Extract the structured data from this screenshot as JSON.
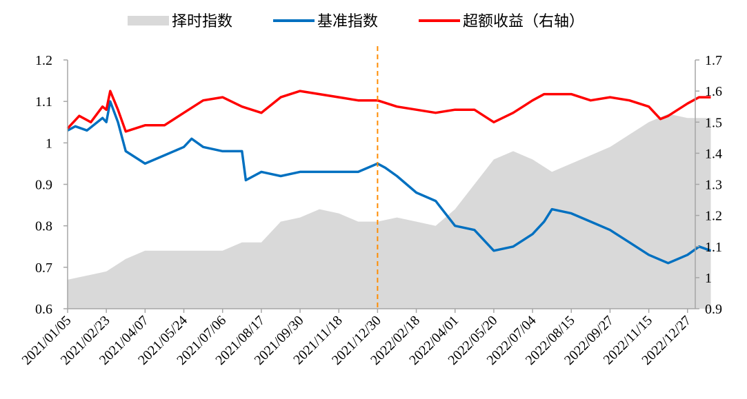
{
  "chart_data": {
    "type": "line",
    "legend": [
      {
        "label": "择时指数",
        "color": "#d9d9d9",
        "kind": "area"
      },
      {
        "label": "基准指数",
        "color": "#0070c0",
        "kind": "line"
      },
      {
        "label": "超额收益（右轴）",
        "color": "#ff0000",
        "kind": "line"
      }
    ],
    "legend_position": "top",
    "x_ticks": [
      "2021/01/05",
      "2021/02/23",
      "2021/04/07",
      "2021/05/24",
      "2021/07/06",
      "2021/08/17",
      "2021/09/30",
      "2021/11/18",
      "2021/12/30",
      "2022/02/18",
      "2022/04/01",
      "2022/05/20",
      "2022/07/04",
      "2022/08/15",
      "2022/09/27",
      "2022/11/15",
      "2022/12/27"
    ],
    "left_axis": {
      "range": [
        0.6,
        1.2
      ],
      "ticks": [
        "0.6",
        "0.7",
        "0.8",
        "0.9",
        "1",
        "1.1",
        "1.2"
      ]
    },
    "right_axis": {
      "range": [
        0.9,
        1.7
      ],
      "ticks": [
        "0.9",
        "1",
        "1.1",
        "1.2",
        "1.3",
        "1.4",
        "1.5",
        "1.6",
        "1.7"
      ]
    },
    "divider": {
      "at": "2021/12/30",
      "color": "#ff8c00",
      "style": "dashed"
    },
    "grid": false,
    "series": [
      {
        "name": "择时指数",
        "axis": "left",
        "color": "#d9d9d9",
        "x": [
          0,
          0.5,
          1,
          1.5,
          2,
          2.5,
          3,
          3.5,
          4,
          4.5,
          5,
          5.5,
          6,
          6.5,
          7,
          7.5,
          8,
          8.5,
          9,
          9.5,
          10,
          10.5,
          11,
          11.5,
          12,
          12.5,
          13,
          13.5,
          14,
          14.5,
          15,
          15.5,
          16,
          16.6
        ],
        "y": [
          0.67,
          0.68,
          0.69,
          0.72,
          0.74,
          0.74,
          0.74,
          0.74,
          0.74,
          0.76,
          0.76,
          0.81,
          0.82,
          0.84,
          0.83,
          0.81,
          0.81,
          0.82,
          0.81,
          0.8,
          0.84,
          0.9,
          0.96,
          0.98,
          0.96,
          0.93,
          0.95,
          0.97,
          0.99,
          1.02,
          1.05,
          1.07,
          1.06,
          1.06
        ]
      },
      {
        "name": "基准指数",
        "axis": "left",
        "color": "#0070c0",
        "x": [
          0,
          0.2,
          0.5,
          0.9,
          1.0,
          1.1,
          1.3,
          1.5,
          2,
          2.5,
          3,
          3.2,
          3.5,
          4,
          4.5,
          4.6,
          5,
          5.5,
          6,
          6.5,
          7,
          7.5,
          8,
          8.2,
          8.5,
          9,
          9.5,
          10,
          10.5,
          11,
          11.5,
          12,
          12.3,
          12.5,
          13,
          13.5,
          14,
          14.5,
          15,
          15.5,
          16,
          16.3,
          16.6
        ],
        "y": [
          1.03,
          1.04,
          1.03,
          1.06,
          1.05,
          1.1,
          1.05,
          0.98,
          0.95,
          0.97,
          0.99,
          1.01,
          0.99,
          0.98,
          0.98,
          0.91,
          0.93,
          0.92,
          0.93,
          0.93,
          0.93,
          0.93,
          0.95,
          0.94,
          0.92,
          0.88,
          0.86,
          0.8,
          0.79,
          0.74,
          0.75,
          0.78,
          0.81,
          0.84,
          0.83,
          0.81,
          0.79,
          0.76,
          0.73,
          0.71,
          0.73,
          0.75,
          0.74
        ]
      },
      {
        "name": "超额收益（右轴）",
        "axis": "right",
        "color": "#ff0000",
        "x": [
          0,
          0.3,
          0.6,
          0.9,
          1.0,
          1.1,
          1.3,
          1.5,
          2,
          2.5,
          3,
          3.5,
          4,
          4.5,
          5,
          5.5,
          6,
          6.5,
          7,
          7.5,
          8,
          8.5,
          9,
          9.5,
          10,
          10.5,
          11,
          11.5,
          12,
          12.3,
          12.5,
          13,
          13.5,
          14,
          14.5,
          15,
          15.3,
          15.5,
          16,
          16.3,
          16.6
        ],
        "y": [
          1.48,
          1.52,
          1.5,
          1.55,
          1.54,
          1.6,
          1.54,
          1.47,
          1.49,
          1.49,
          1.53,
          1.57,
          1.58,
          1.55,
          1.53,
          1.58,
          1.6,
          1.59,
          1.58,
          1.57,
          1.57,
          1.55,
          1.54,
          1.53,
          1.54,
          1.54,
          1.5,
          1.53,
          1.57,
          1.59,
          1.59,
          1.59,
          1.57,
          1.58,
          1.57,
          1.55,
          1.51,
          1.52,
          1.56,
          1.58,
          1.58
        ]
      }
    ]
  }
}
